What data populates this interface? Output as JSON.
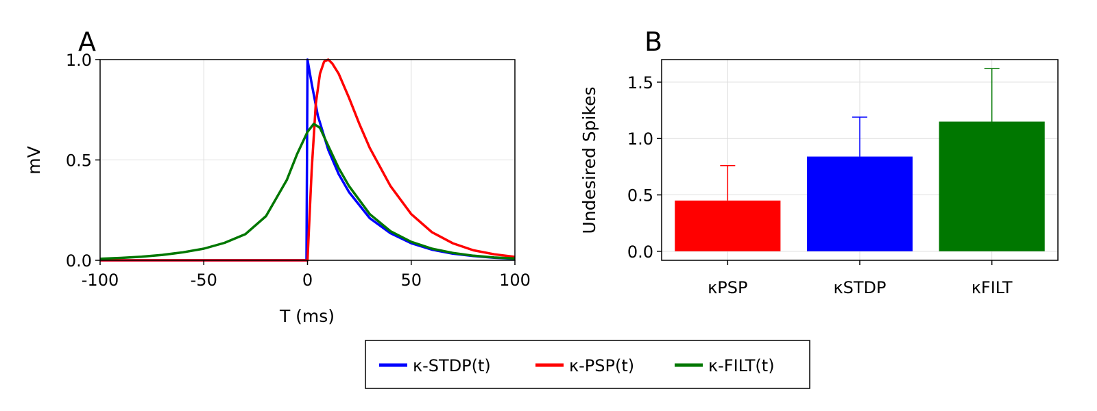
{
  "chart_data": [
    {
      "type": "line",
      "panel_label": "A",
      "xlabel": "T (ms)",
      "ylabel": "mV",
      "xlim": [
        -100,
        100
      ],
      "ylim": [
        0,
        1
      ],
      "x_ticks": [
        -100,
        -50,
        0,
        50,
        100
      ],
      "x_tick_labels": [
        "-100",
        "-50",
        "0",
        "50",
        "100"
      ],
      "y_ticks": [
        0,
        0.5,
        1
      ],
      "y_tick_labels": [
        "0.0",
        "0.5",
        "1.0"
      ],
      "grid": true,
      "series": [
        {
          "name": "κ-STDP(t)",
          "color": "#0000ff",
          "x": [
            -100,
            -2,
            -0.5,
            0,
            2,
            5,
            10,
            15,
            20,
            30,
            40,
            50,
            60,
            70,
            80,
            90,
            100
          ],
          "y": [
            0,
            0,
            0,
            1.0,
            0.88,
            0.72,
            0.55,
            0.43,
            0.34,
            0.21,
            0.135,
            0.085,
            0.053,
            0.033,
            0.021,
            0.013,
            0.008
          ]
        },
        {
          "name": "κ-PSP(t)",
          "color": "#ff0000",
          "x": [
            -100,
            0,
            2,
            4,
            6,
            8,
            10,
            12,
            15,
            20,
            25,
            30,
            40,
            50,
            60,
            70,
            80,
            90,
            100
          ],
          "y": [
            0,
            0,
            0.45,
            0.78,
            0.93,
            0.99,
            1.0,
            0.98,
            0.93,
            0.81,
            0.68,
            0.56,
            0.37,
            0.23,
            0.14,
            0.085,
            0.05,
            0.03,
            0.017
          ]
        },
        {
          "name": "κ-FILT(t)",
          "color": "#007700",
          "x": [
            -100,
            -90,
            -80,
            -70,
            -60,
            -50,
            -40,
            -30,
            -20,
            -10,
            -5,
            0,
            3,
            6,
            10,
            15,
            20,
            30,
            40,
            50,
            60,
            70,
            80,
            90,
            100
          ],
          "y": [
            0.008,
            0.012,
            0.018,
            0.027,
            0.04,
            0.058,
            0.087,
            0.13,
            0.22,
            0.4,
            0.53,
            0.64,
            0.68,
            0.66,
            0.57,
            0.46,
            0.37,
            0.23,
            0.145,
            0.092,
            0.058,
            0.037,
            0.023,
            0.014,
            0.009
          ]
        }
      ]
    },
    {
      "type": "bar",
      "panel_label": "B",
      "ylabel": "Undesired Spikes",
      "categories": [
        "κPSP",
        "κSTDP",
        "κFILT"
      ],
      "values": [
        0.45,
        0.84,
        1.15
      ],
      "errors": [
        0.31,
        0.35,
        0.47
      ],
      "colors": [
        "#ff0000",
        "#0000ff",
        "#007700"
      ],
      "ylim": [
        -0.08,
        1.7
      ],
      "y_ticks": [
        0,
        0.5,
        1,
        1.5
      ],
      "y_tick_labels": [
        "0.0",
        "0.5",
        "1.0",
        "1.5"
      ],
      "grid": true
    }
  ],
  "legend": {
    "placement": "bottom-center",
    "entries": [
      {
        "label": "κ-STDP(t)",
        "color": "#0000ff"
      },
      {
        "label": "κ-PSP(t)",
        "color": "#ff0000"
      },
      {
        "label": "κ-FILT(t)",
        "color": "#007700"
      }
    ]
  }
}
